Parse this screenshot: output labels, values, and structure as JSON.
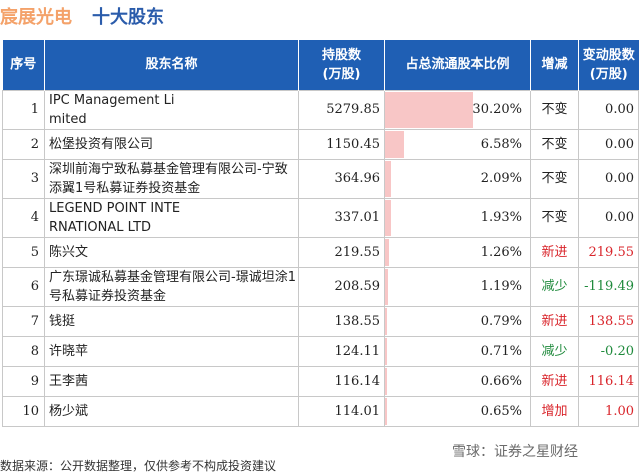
{
  "header": {
    "company": "宸展光电",
    "subject": "十大股东"
  },
  "columns": {
    "idx": "序号",
    "name": "股东名称",
    "shares": "持股数\n(万股)",
    "ratio": "占总流通股本比例",
    "change": "增减",
    "delta": "变动股数\n(万股)"
  },
  "rows": [
    {
      "idx": "1",
      "name": "IPC Management Li\nmited",
      "shares": "5279.85",
      "ratio": "30.20%",
      "ratio_value": 30.2,
      "change": "不变",
      "change_type": "flat",
      "delta": "0.00"
    },
    {
      "idx": "2",
      "name": "松堡投资有限公司",
      "shares": "1150.45",
      "ratio": "6.58%",
      "ratio_value": 6.58,
      "change": "不变",
      "change_type": "flat",
      "delta": "0.00"
    },
    {
      "idx": "3",
      "name": "深圳前海宁致私募基金管理有限公司-宁致添翼1号私募证券投资基金",
      "shares": "364.96",
      "ratio": "2.09%",
      "ratio_value": 2.09,
      "change": "不变",
      "change_type": "flat",
      "delta": "0.00"
    },
    {
      "idx": "4",
      "name": "LEGEND POINT INTE\nRNATIONAL LTD",
      "shares": "337.01",
      "ratio": "1.93%",
      "ratio_value": 1.93,
      "change": "不变",
      "change_type": "flat",
      "delta": "0.00"
    },
    {
      "idx": "5",
      "name": "陈兴文",
      "shares": "219.55",
      "ratio": "1.26%",
      "ratio_value": 1.26,
      "change": "新进",
      "change_type": "new",
      "delta": "219.55"
    },
    {
      "idx": "6",
      "name": "广东璟诚私募基金管理有限公司-璟诚坦涂1号私募证券投资基金",
      "shares": "208.59",
      "ratio": "1.19%",
      "ratio_value": 1.19,
      "change": "减少",
      "change_type": "down",
      "delta": "-119.49"
    },
    {
      "idx": "7",
      "name": "钱挺",
      "shares": "138.55",
      "ratio": "0.79%",
      "ratio_value": 0.79,
      "change": "新进",
      "change_type": "new",
      "delta": "138.55"
    },
    {
      "idx": "8",
      "name": "许晓苹",
      "shares": "124.11",
      "ratio": "0.71%",
      "ratio_value": 0.71,
      "change": "减少",
      "change_type": "down",
      "delta": "-0.20"
    },
    {
      "idx": "9",
      "name": "王李茜",
      "shares": "116.14",
      "ratio": "0.66%",
      "ratio_value": 0.66,
      "change": "新进",
      "change_type": "new",
      "delta": "116.14"
    },
    {
      "idx": "10",
      "name": "杨少斌",
      "shares": "114.01",
      "ratio": "0.65%",
      "ratio_value": 0.65,
      "change": "增加",
      "change_type": "up",
      "delta": "1.00"
    }
  ],
  "footer": {
    "source": "数据来源：公开数据整理，仅供参考不构成投资建议"
  },
  "watermark": {
    "text": "雪球：证券之星财经"
  },
  "colors": {
    "header_bg": "#1f5fb4",
    "company": "#f4a26a",
    "subject": "#2b5cab",
    "ratio_bar": "#f8c6c6",
    "increase": "#d9252b",
    "decrease": "#1f8a3c"
  }
}
